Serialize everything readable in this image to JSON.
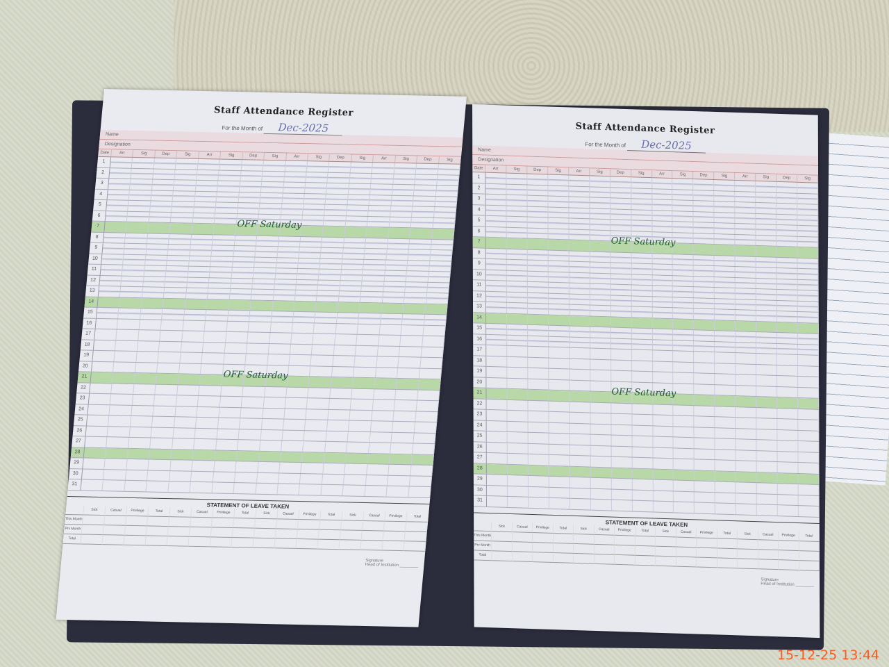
{
  "register": {
    "title": "Staff Attendance Register",
    "month_label": "For the Month of",
    "month_value": "Dec-2025",
    "name_label": "Name",
    "designation_label": "Designation",
    "column_headers": [
      "Date",
      "Arr",
      "Sig",
      "Dep",
      "Sig",
      "Arr",
      "Sig",
      "Dep",
      "Sig",
      "Arr",
      "Sig",
      "Dep",
      "Sig",
      "Arr",
      "Sig",
      "Dep",
      "Sig"
    ],
    "days": [
      "1",
      "2",
      "3",
      "4",
      "5",
      "6",
      "7",
      "8",
      "9",
      "10",
      "11",
      "12",
      "13",
      "14",
      "15",
      "16",
      "17",
      "18",
      "19",
      "20",
      "21",
      "22",
      "23",
      "24",
      "25",
      "26",
      "27",
      "28",
      "29",
      "30",
      "31"
    ],
    "off_label": "OFF Saturday",
    "statement_title": "STATEMENT OF LEAVE TAKEN",
    "leave_columns": [
      "Sick",
      "Casual",
      "Privilege",
      "Total"
    ],
    "leave_rows": [
      "This Month",
      "Prv Month",
      "Total"
    ],
    "signature_label": "Signature",
    "head_label": "Head of Institution"
  },
  "timestamp": "15-12-25  13:44",
  "colors": {
    "highlight": "#b9d8a8",
    "ink_green": "#1e5b2e",
    "timestamp": "#ff5a1e"
  }
}
